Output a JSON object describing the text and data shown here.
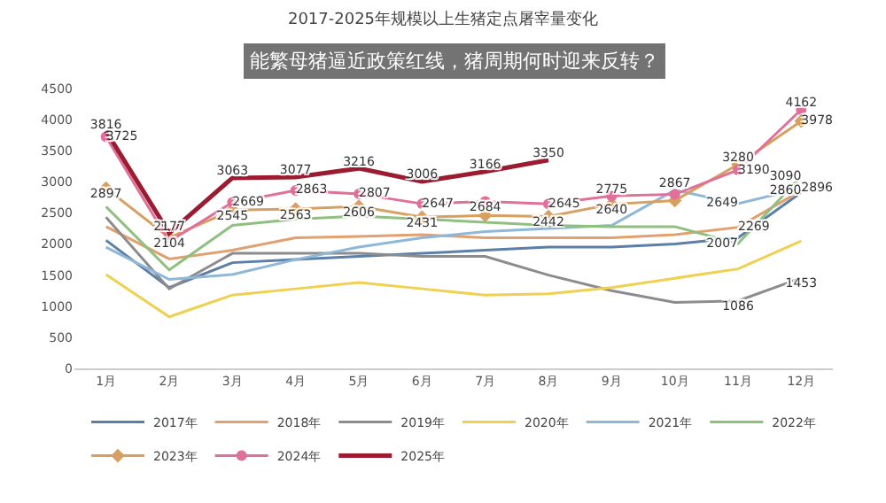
{
  "chart_data": {
    "type": "line",
    "title": "2017-2025年规模以上生猪定点屠宰量变化",
    "categories": [
      "1月",
      "2月",
      "3月",
      "4月",
      "5月",
      "6月",
      "7月",
      "8月",
      "9月",
      "10月",
      "11月",
      "12月"
    ],
    "ylim": [
      0,
      4500
    ],
    "yticks": [
      0,
      500,
      1000,
      1500,
      2000,
      2500,
      3000,
      3500,
      4000,
      4500
    ],
    "grid": false,
    "legend": "bottom",
    "marker": "none",
    "series": [
      {
        "name": "2017年",
        "color": "#5b7fa6",
        "values": [
          2060,
          1300,
          1700,
          1750,
          1800,
          1850,
          1900,
          1950,
          1950,
          2000,
          2100,
          2830
        ]
      },
      {
        "name": "2018年",
        "color": "#e0a070",
        "values": [
          2280,
          1760,
          1900,
          2100,
          2120,
          2150,
          2100,
          2100,
          2100,
          2150,
          2269,
          2860
        ],
        "value_labels": [
          null,
          null,
          null,
          null,
          null,
          null,
          null,
          null,
          null,
          null,
          "2269",
          "2860"
        ]
      },
      {
        "name": "2019年",
        "color": "#8c8c8c",
        "values": [
          2430,
          1280,
          1850,
          1850,
          1850,
          1800,
          1800,
          1500,
          1250,
          1060,
          1086,
          1453
        ],
        "value_labels": [
          null,
          null,
          null,
          null,
          null,
          null,
          null,
          null,
          null,
          null,
          "1086",
          "1453"
        ]
      },
      {
        "name": "2020年",
        "color": "#f0d050",
        "values": [
          1510,
          830,
          1180,
          1280,
          1380,
          1280,
          1180,
          1200,
          1300,
          1450,
          1600,
          2050
        ]
      },
      {
        "name": "2021年",
        "color": "#8fb8d8",
        "values": [
          1950,
          1430,
          1510,
          1750,
          1950,
          2100,
          2200,
          2250,
          2300,
          2867,
          2649,
          2896
        ],
        "value_labels": [
          null,
          null,
          null,
          null,
          null,
          null,
          null,
          null,
          null,
          "2867",
          "2649",
          "2896"
        ]
      },
      {
        "name": "2022年",
        "color": "#90c080",
        "values": [
          2600,
          1585,
          2300,
          2400,
          2450,
          2400,
          2350,
          2300,
          2280,
          2280,
          2007,
          3090
        ],
        "value_labels": [
          null,
          null,
          null,
          null,
          null,
          null,
          null,
          null,
          null,
          null,
          "2007",
          "3090"
        ]
      },
      {
        "name": "2023年",
        "color": "#d8a060",
        "marker": "diamond",
        "values": [
          2897,
          2104,
          2545,
          2563,
          2606,
          2431,
          2460,
          2442,
          2640,
          2700,
          3280,
          3978
        ],
        "value_labels": [
          "2897",
          "2104",
          "2545",
          "2563",
          "2606",
          "2431",
          null,
          "2442",
          "2640",
          null,
          "3280",
          "3978"
        ]
      },
      {
        "name": "2024年",
        "color": "#e0709a",
        "marker": "circle",
        "values": [
          3725,
          2040,
          2669,
          2863,
          2807,
          2647,
          2684,
          2645,
          2775,
          2800,
          3190,
          4162
        ],
        "value_labels": [
          "3725",
          null,
          "2669",
          "2863",
          "2807",
          "2647",
          "2684",
          "2645",
          "2775",
          null,
          "3190",
          "4162"
        ]
      },
      {
        "name": "2025年",
        "color": "#9b1b30",
        "values": [
          3816,
          2177,
          3063,
          3077,
          3216,
          3006,
          3166,
          3350,
          null,
          null,
          null,
          null
        ],
        "value_labels": [
          "3816",
          "2177",
          "3063",
          "3077",
          "3216",
          "3006",
          "3166",
          "3350",
          null,
          null,
          null,
          null
        ]
      }
    ],
    "annotations": [
      "能繁母猪逼近政策红线，猪周期何时迎来反转？"
    ]
  }
}
